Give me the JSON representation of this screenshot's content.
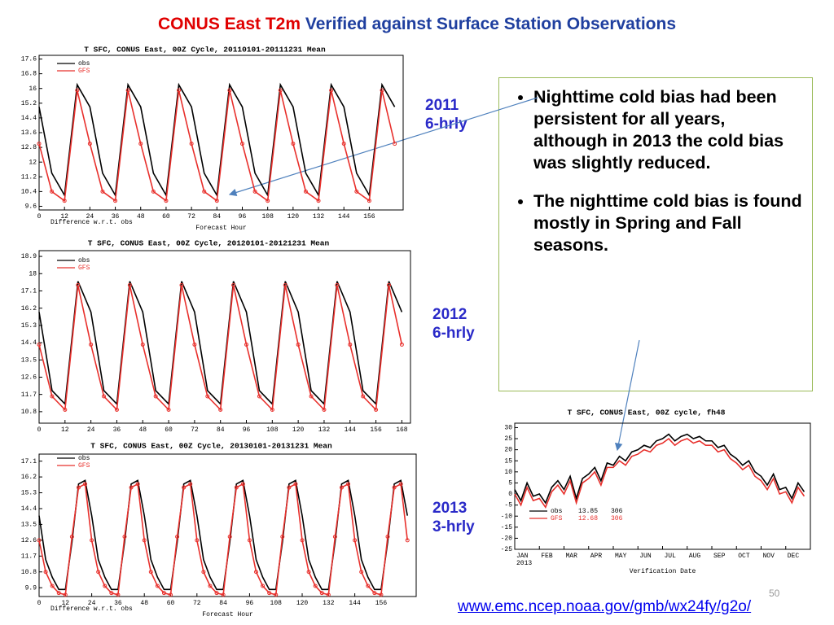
{
  "slide": {
    "title_red": "CONUS East T2m",
    "title_blue": "Verified against Surface Station Observations",
    "labels": [
      [
        "2011",
        "6-hrly"
      ],
      [
        "2012",
        "6-hrly"
      ],
      [
        "2013",
        "3-hrly"
      ]
    ],
    "bullets": [
      "Nighttime cold bias had been  persistent  for all years, although in 2013 the cold bias was slightly reduced.",
      "The nighttime cold bias is found mostly in Spring and Fall seasons."
    ],
    "link": "www.emc.ncep.noaa.gov/gmb/wx24fy/g2o/",
    "page_number": "50"
  },
  "chart_data": [
    {
      "type": "line",
      "title": "T SFC, CONUS East, 00Z Cycle, 20110101-20111231 Mean",
      "x_label": "Forecast Hour",
      "annotation": "Difference w.r.t. obs",
      "x": [
        0,
        6,
        12,
        18,
        24,
        30,
        36,
        42,
        48,
        54,
        60,
        66,
        72,
        78,
        84,
        90,
        96,
        102,
        108,
        114,
        120,
        126,
        132,
        138,
        144,
        150,
        156,
        162,
        168
      ],
      "xlim": [
        0,
        172
      ],
      "xticks": [
        0,
        12,
        24,
        36,
        48,
        60,
        72,
        84,
        96,
        108,
        120,
        132,
        144,
        156
      ],
      "ylim": [
        9.4,
        17.8
      ],
      "yticks": [
        9.6,
        10.4,
        11.2,
        12,
        12.8,
        13.6,
        14.4,
        15.2,
        16,
        16.8,
        17.6
      ],
      "grid": false,
      "series": [
        {
          "name": "obs",
          "color": "#000000",
          "markers": false,
          "values": [
            15.0,
            11.4,
            10.2,
            16.2,
            15.0,
            11.4,
            10.2,
            16.2,
            15.0,
            11.4,
            10.2,
            16.2,
            15.0,
            11.4,
            10.2,
            16.2,
            15.0,
            11.4,
            10.2,
            16.2,
            15.0,
            11.4,
            10.2,
            16.2,
            15.0,
            11.4,
            10.2,
            16.2,
            15.0
          ]
        },
        {
          "name": "GFS",
          "color": "#e8302c",
          "markers": true,
          "values": [
            13.0,
            10.4,
            9.9,
            15.9,
            13.0,
            10.4,
            9.9,
            15.9,
            13.0,
            10.4,
            9.9,
            15.9,
            13.0,
            10.4,
            9.9,
            15.9,
            13.0,
            10.4,
            9.9,
            15.9,
            13.0,
            10.4,
            9.9,
            15.9,
            13.0,
            10.4,
            9.9,
            15.9,
            13.0
          ]
        }
      ]
    },
    {
      "type": "line",
      "title": "T SFC, CONUS East, 00Z Cycle, 20120101-20121231 Mean",
      "x": [
        0,
        6,
        12,
        18,
        24,
        30,
        36,
        42,
        48,
        54,
        60,
        66,
        72,
        78,
        84,
        90,
        96,
        102,
        108,
        114,
        120,
        126,
        132,
        138,
        144,
        150,
        156,
        162,
        168
      ],
      "xlim": [
        0,
        172
      ],
      "xticks": [
        0,
        12,
        24,
        36,
        48,
        60,
        72,
        84,
        96,
        108,
        120,
        132,
        144,
        156,
        168
      ],
      "ylim": [
        10.2,
        19.2
      ],
      "yticks": [
        10.8,
        11.7,
        12.6,
        13.5,
        14.4,
        15.3,
        16.2,
        17.1,
        18,
        18.9
      ],
      "grid": false,
      "series": [
        {
          "name": "obs",
          "color": "#000000",
          "markers": false,
          "values": [
            16.0,
            11.9,
            11.2,
            17.6,
            16.0,
            11.9,
            11.2,
            17.6,
            16.0,
            11.9,
            11.2,
            17.6,
            16.0,
            11.9,
            11.2,
            17.6,
            16.0,
            11.9,
            11.2,
            17.6,
            16.0,
            11.9,
            11.2,
            17.6,
            16.0,
            11.9,
            11.2,
            17.6,
            16.0
          ]
        },
        {
          "name": "GFS",
          "color": "#e8302c",
          "markers": true,
          "values": [
            14.3,
            11.6,
            10.9,
            17.4,
            14.3,
            11.6,
            10.9,
            17.4,
            14.3,
            11.6,
            10.9,
            17.4,
            14.3,
            11.6,
            10.9,
            17.4,
            14.3,
            11.6,
            10.9,
            17.4,
            14.3,
            11.6,
            10.9,
            17.4,
            14.3,
            11.6,
            10.9,
            17.4,
            14.3
          ]
        }
      ]
    },
    {
      "type": "line",
      "title": "T SFC, CONUS East, 00Z Cycle, 20130101-20131231 Mean",
      "x_label": "Forecast Hour",
      "annotation": "Difference w.r.t. obs",
      "x": [
        0,
        3,
        6,
        9,
        12,
        15,
        18,
        21,
        24,
        27,
        30,
        33,
        36,
        39,
        42,
        45,
        48,
        51,
        54,
        57,
        60,
        63,
        66,
        69,
        72,
        75,
        78,
        81,
        84,
        87,
        90,
        93,
        96,
        99,
        102,
        105,
        108,
        111,
        114,
        117,
        120,
        123,
        126,
        129,
        132,
        135,
        138,
        141,
        144,
        147,
        150,
        153,
        156,
        159,
        162,
        165,
        168
      ],
      "xlim": [
        0,
        172
      ],
      "xticks": [
        0,
        12,
        24,
        36,
        48,
        60,
        72,
        84,
        96,
        108,
        120,
        132,
        144,
        156
      ],
      "ylim": [
        9.4,
        17.5
      ],
      "yticks": [
        9.9,
        10.8,
        11.7,
        12.6,
        13.5,
        14.4,
        15.3,
        16.2,
        17.1
      ],
      "grid": false,
      "series": [
        {
          "name": "obs",
          "color": "#000000",
          "markers": false,
          "values": [
            14.0,
            11.5,
            10.5,
            9.8,
            9.8,
            12.5,
            15.8,
            16.0,
            14.0,
            11.5,
            10.5,
            9.8,
            9.8,
            12.5,
            15.8,
            16.0,
            14.0,
            11.5,
            10.5,
            9.8,
            9.8,
            12.5,
            15.8,
            16.0,
            14.0,
            11.5,
            10.5,
            9.8,
            9.8,
            12.5,
            15.8,
            16.0,
            14.0,
            11.5,
            10.5,
            9.8,
            9.8,
            12.5,
            15.8,
            16.0,
            14.0,
            11.5,
            10.5,
            9.8,
            9.8,
            12.5,
            15.8,
            16.0,
            14.0,
            11.5,
            10.5,
            9.8,
            9.8,
            12.5,
            15.8,
            16.0,
            14.0
          ]
        },
        {
          "name": "GFS",
          "color": "#e8302c",
          "markers": true,
          "values": [
            12.6,
            10.8,
            10.0,
            9.6,
            9.5,
            12.8,
            15.6,
            15.8,
            12.6,
            10.8,
            10.0,
            9.6,
            9.5,
            12.8,
            15.6,
            15.8,
            12.6,
            10.8,
            10.0,
            9.6,
            9.5,
            12.8,
            15.6,
            15.8,
            12.6,
            10.8,
            10.0,
            9.6,
            9.5,
            12.8,
            15.6,
            15.8,
            12.6,
            10.8,
            10.0,
            9.6,
            9.5,
            12.8,
            15.6,
            15.8,
            12.6,
            10.8,
            10.0,
            9.6,
            9.5,
            12.8,
            15.6,
            15.8,
            12.6,
            10.8,
            10.0,
            9.6,
            9.5,
            12.8,
            15.6,
            15.8,
            12.6
          ]
        }
      ]
    },
    {
      "type": "line",
      "title": "T SFC, CONUS East, 00Z cycle, fh48",
      "x_label": "Verification Date",
      "x_sublabel": "2013",
      "x": [
        1,
        1.25,
        1.5,
        1.75,
        2,
        2.25,
        2.5,
        2.75,
        3,
        3.25,
        3.5,
        3.75,
        4,
        4.25,
        4.5,
        4.75,
        5,
        5.25,
        5.5,
        5.75,
        6,
        6.25,
        6.5,
        6.75,
        7,
        7.25,
        7.5,
        7.75,
        8,
        8.25,
        8.5,
        8.75,
        9,
        9.25,
        9.5,
        9.75,
        10,
        10.25,
        10.5,
        10.75,
        11,
        11.25,
        11.5,
        11.75,
        12,
        12.25,
        12.5,
        12.75
      ],
      "xlim": [
        1,
        13
      ],
      "xticks": [
        {
          "value": 1,
          "label": "JAN"
        },
        {
          "value": 2,
          "label": "FEB"
        },
        {
          "value": 3,
          "label": "MAR"
        },
        {
          "value": 4,
          "label": "APR"
        },
        {
          "value": 5,
          "label": "MAY"
        },
        {
          "value": 6,
          "label": "JUN"
        },
        {
          "value": 7,
          "label": "JUL"
        },
        {
          "value": 8,
          "label": "AUG"
        },
        {
          "value": 9,
          "label": "SEP"
        },
        {
          "value": 10,
          "label": "OCT"
        },
        {
          "value": 11,
          "label": "NOV"
        },
        {
          "value": 12,
          "label": "DEC"
        }
      ],
      "ylim": [
        -25,
        32
      ],
      "yticks": [
        -25,
        -20,
        -15,
        -10,
        -5,
        0,
        5,
        10,
        15,
        20,
        25,
        30
      ],
      "grid": false,
      "series": [
        {
          "name": "obs",
          "color": "#000000",
          "markers": false,
          "mean": 13.85,
          "count": 306,
          "values": [
            2,
            -3,
            5,
            -1,
            0,
            -4,
            3,
            6,
            2,
            8,
            -2,
            7,
            9,
            12,
            6,
            14,
            13,
            17,
            15,
            19,
            20,
            22,
            21,
            24,
            25,
            27,
            24,
            26,
            27,
            25,
            26,
            24,
            24,
            21,
            22,
            18,
            16,
            13,
            15,
            10,
            8,
            4,
            9,
            2,
            3,
            -2,
            5,
            1
          ]
        },
        {
          "name": "GFS",
          "color": "#e8302c",
          "markers": false,
          "mean": 12.68,
          "count": 306,
          "values": [
            0,
            -5,
            3,
            -3,
            -2,
            -6,
            1,
            4,
            0,
            6,
            -4,
            5,
            7,
            10,
            4,
            12,
            12,
            15,
            13,
            17,
            18,
            20,
            19,
            22,
            23,
            25,
            22,
            24,
            25,
            23,
            24,
            22,
            22,
            19,
            20,
            16,
            14,
            11,
            13,
            8,
            6,
            2,
            7,
            0,
            1,
            -4,
            3,
            -1
          ]
        }
      ]
    }
  ]
}
